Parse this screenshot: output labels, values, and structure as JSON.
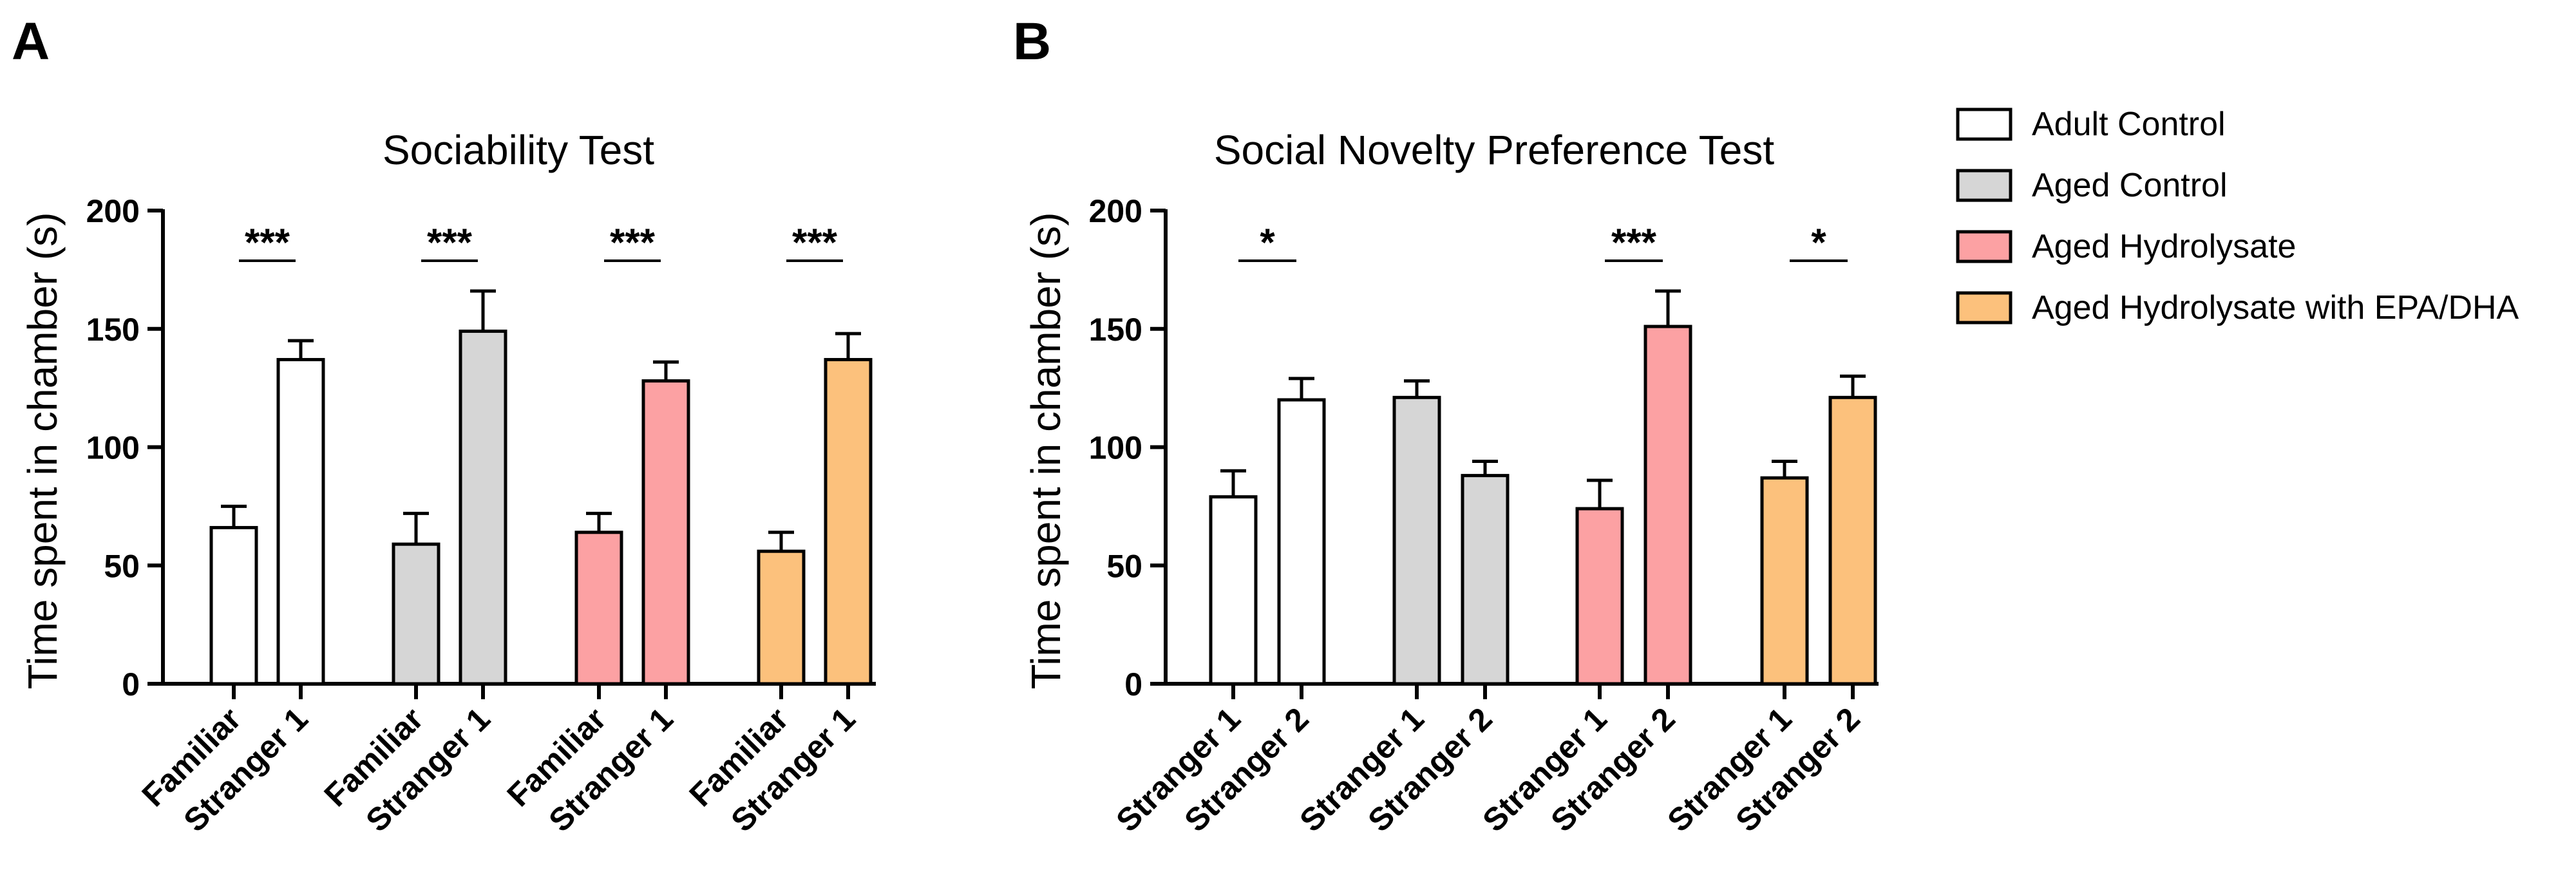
{
  "colors": {
    "adult_control": "#ffffff",
    "aged_control": "#d6d6d6",
    "aged_hydrolysate": "#fca1a3",
    "aged_hydrolysate_epa_dha": "#fcc17c",
    "stroke": "#000000"
  },
  "legend": [
    {
      "label": "Adult Control",
      "color": "#ffffff"
    },
    {
      "label": "Aged Control",
      "color": "#d6d6d6"
    },
    {
      "label": "Aged Hydrolysate",
      "color": "#fca1a3"
    },
    {
      "label": "Aged Hydrolysate with EPA/DHA",
      "color": "#fcc17c"
    }
  ],
  "chart_data": [
    {
      "panel": "A",
      "type": "bar",
      "title": "Sociability Test",
      "ylabel": "Time spent in chamber (s)",
      "xlabel": "",
      "ylim": [
        0,
        200
      ],
      "yticks": [
        0,
        50,
        100,
        150,
        200
      ],
      "groups": [
        {
          "name": "Adult Control",
          "color": "#ffffff",
          "bars": [
            {
              "label": "Familiar",
              "value": 66,
              "error": 9
            },
            {
              "label": "Stranger 1",
              "value": 137,
              "error": 8
            }
          ],
          "significance": "***"
        },
        {
          "name": "Aged Control",
          "color": "#d6d6d6",
          "bars": [
            {
              "label": "Familiar",
              "value": 59,
              "error": 13
            },
            {
              "label": "Stranger 1",
              "value": 149,
              "error": 17
            }
          ],
          "significance": "***"
        },
        {
          "name": "Aged Hydrolysate",
          "color": "#fca1a3",
          "bars": [
            {
              "label": "Familiar",
              "value": 64,
              "error": 8
            },
            {
              "label": "Stranger 1",
              "value": 128,
              "error": 8
            }
          ],
          "significance": "***"
        },
        {
          "name": "Aged Hydrolysate with EPA/DHA",
          "color": "#fcc17c",
          "bars": [
            {
              "label": "Familiar",
              "value": 56,
              "error": 8
            },
            {
              "label": "Stranger 1",
              "value": 137,
              "error": 11
            }
          ],
          "significance": "***"
        }
      ]
    },
    {
      "panel": "B",
      "type": "bar",
      "title": "Social Novelty Preference Test",
      "ylabel": "Time spent in chamber (s)",
      "xlabel": "",
      "ylim": [
        0,
        200
      ],
      "yticks": [
        0,
        50,
        100,
        150,
        200
      ],
      "groups": [
        {
          "name": "Adult Control",
          "color": "#ffffff",
          "bars": [
            {
              "label": "Stranger 1",
              "value": 79,
              "error": 11
            },
            {
              "label": "Stranger 2",
              "value": 120,
              "error": 9
            }
          ],
          "significance": "*"
        },
        {
          "name": "Aged Control",
          "color": "#d6d6d6",
          "bars": [
            {
              "label": "Stranger 1",
              "value": 121,
              "error": 7
            },
            {
              "label": "Stranger 2",
              "value": 88,
              "error": 6
            }
          ],
          "significance": ""
        },
        {
          "name": "Aged Hydrolysate",
          "color": "#fca1a3",
          "bars": [
            {
              "label": "Stranger 1",
              "value": 74,
              "error": 12
            },
            {
              "label": "Stranger 2",
              "value": 151,
              "error": 15
            }
          ],
          "significance": "***"
        },
        {
          "name": "Aged Hydrolysate with EPA/DHA",
          "color": "#fcc17c",
          "bars": [
            {
              "label": "Stranger 1",
              "value": 87,
              "error": 7
            },
            {
              "label": "Stranger 2",
              "value": 121,
              "error": 9
            }
          ],
          "significance": "*"
        }
      ]
    }
  ]
}
